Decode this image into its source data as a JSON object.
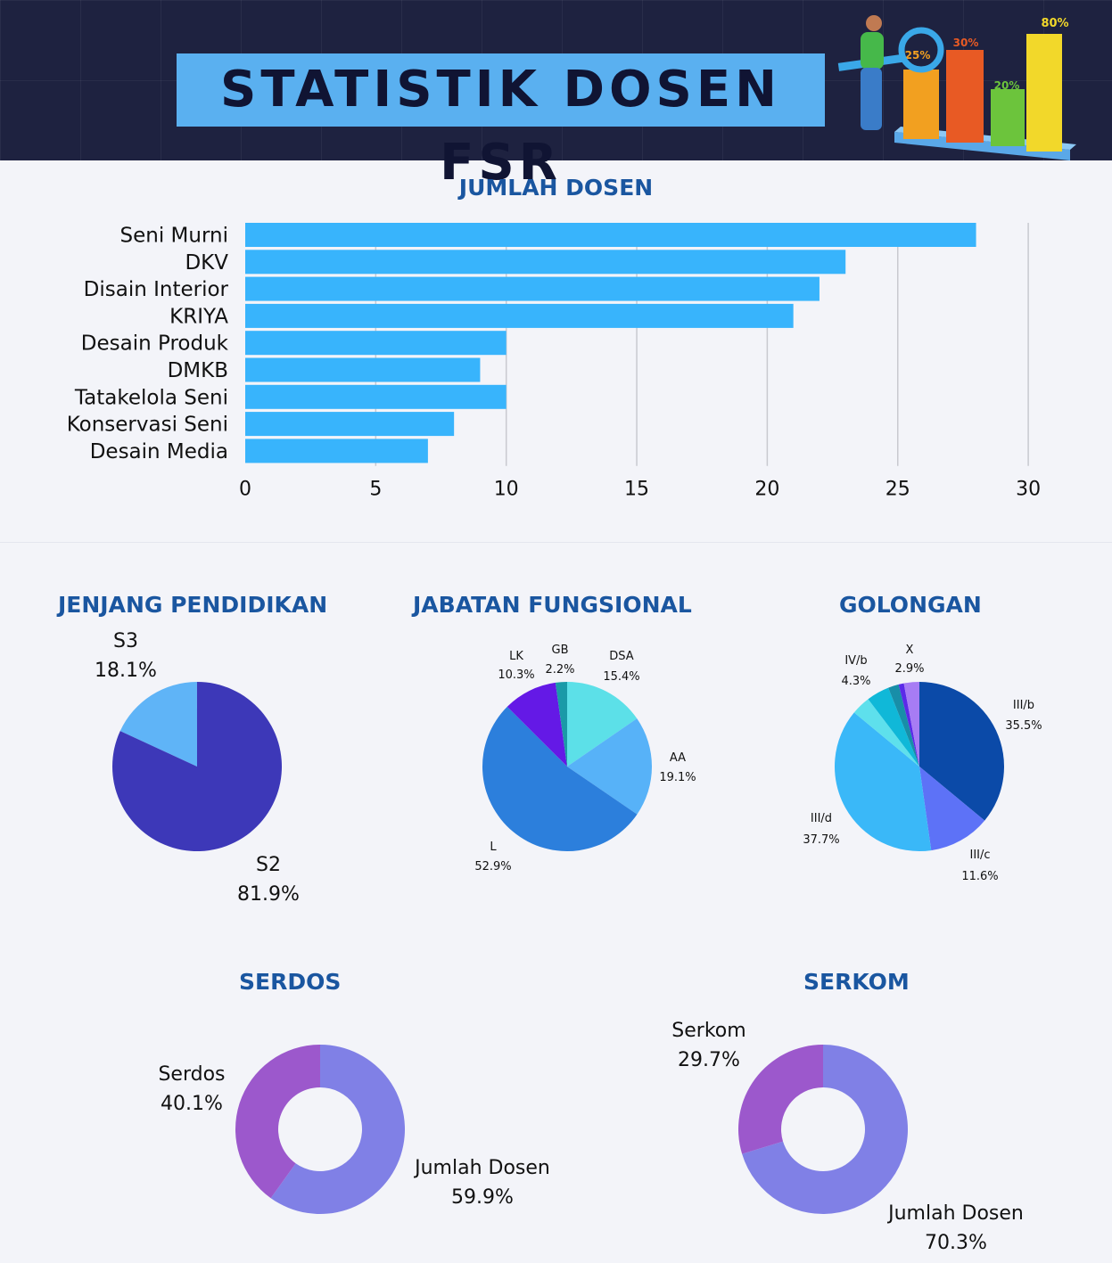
{
  "header": {
    "title": "STATISTIK DOSEN FSR"
  },
  "illustration": {
    "bar_labels": [
      "25%",
      "30%",
      "20%",
      "80%"
    ]
  },
  "chart_data": [
    {
      "type": "bar",
      "orientation": "horizontal",
      "title": "JUMLAH DOSEN",
      "categories": [
        "Seni Murni",
        "DKV",
        "Disain Interior",
        "KRIYA",
        "Desain Produk",
        "DMKB",
        "Tatakelola Seni",
        "Konservasi Seni",
        "Desain Media"
      ],
      "values": [
        28,
        23,
        22,
        21,
        10,
        9,
        10,
        8,
        7
      ],
      "xlim": [
        0,
        30
      ],
      "xticks": [
        "0",
        "5",
        "10",
        "15",
        "20",
        "25",
        "30"
      ],
      "grid": true,
      "color": "#38b4fc"
    },
    {
      "type": "pie",
      "title": "JENJANG PENDIDIKAN",
      "slices": [
        {
          "label": "S3",
          "value": 18.1,
          "pct_label": "18.1%",
          "color": "#5fb4f7"
        },
        {
          "label": "S2",
          "value": 81.9,
          "pct_label": "81.9%",
          "color": "#3d38b8"
        }
      ]
    },
    {
      "type": "pie",
      "title": "JABATAN FUNGSIONAL",
      "slices": [
        {
          "label": "DSA",
          "value": 15.4,
          "pct_label": "15.4%",
          "color": "#5ce0e8"
        },
        {
          "label": "AA",
          "value": 19.1,
          "pct_label": "19.1%",
          "color": "#57b2f8"
        },
        {
          "label": "L",
          "value": 52.9,
          "pct_label": "52.9%",
          "color": "#2c7fdc"
        },
        {
          "label": "LK",
          "value": 10.3,
          "pct_label": "10.3%",
          "color": "#6419e6"
        },
        {
          "label": "GB",
          "value": 2.2,
          "pct_label": "2.2%",
          "color": "#1a9aa8"
        }
      ]
    },
    {
      "type": "pie",
      "title": "GOLONGAN",
      "slices": [
        {
          "label": "III/b",
          "value": 35.5,
          "pct_label": "35.5%",
          "color": "#0b4aa8"
        },
        {
          "label": "III/c",
          "value": 11.6,
          "pct_label": "11.6%",
          "color": "#5d72f7"
        },
        {
          "label": "III/d",
          "value": 37.7,
          "pct_label": "37.7%",
          "color": "#3ab8f8"
        },
        {
          "label": "",
          "value": 3.6,
          "pct_label": "",
          "color": "#5ee0ec"
        },
        {
          "label": "IV/b",
          "value": 4.3,
          "pct_label": "4.3%",
          "color": "#10b8d8"
        },
        {
          "label": "",
          "value": 2.0,
          "pct_label": "",
          "color": "#188ea8"
        },
        {
          "label": "",
          "value": 1.0,
          "pct_label": "",
          "color": "#5b2ae8"
        },
        {
          "label": "X",
          "value": 2.9,
          "pct_label": "2.9%",
          "color": "#a77cf4"
        }
      ]
    },
    {
      "type": "donut",
      "title": "SERDOS",
      "slices": [
        {
          "label": "Jumlah Dosen",
          "value": 59.9,
          "pct_label": "59.9%",
          "color": "#8080e6"
        },
        {
          "label": "Serdos",
          "value": 40.1,
          "pct_label": "40.1%",
          "color": "#9c58cc"
        }
      ]
    },
    {
      "type": "donut",
      "title": "SERKOM",
      "slices": [
        {
          "label": "Jumlah Dosen",
          "value": 70.3,
          "pct_label": "70.3%",
          "color": "#8080e6"
        },
        {
          "label": "Serkom",
          "value": 29.7,
          "pct_label": "29.7%",
          "color": "#9c58cc"
        }
      ]
    }
  ]
}
